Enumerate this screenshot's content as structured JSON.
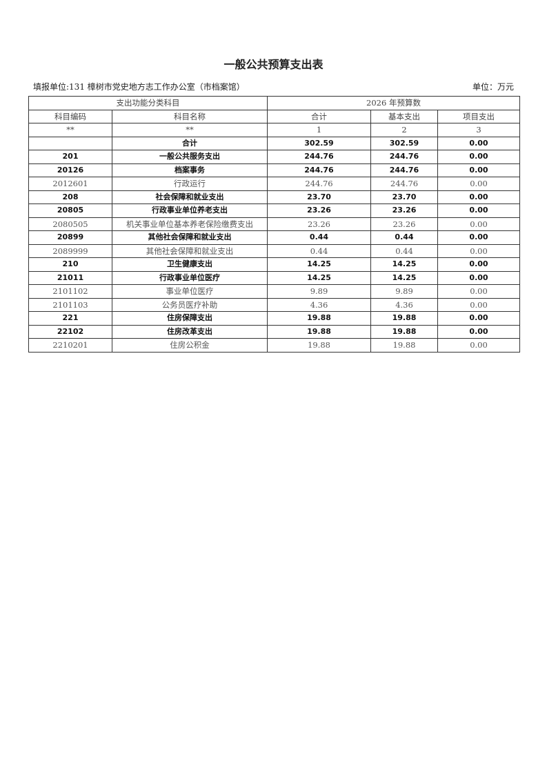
{
  "title": "一般公共预算支出表",
  "unit_left": "填报单位:131 樟树市党史地方志工作办公室（市档案馆）",
  "unit_right": "单位：万元",
  "header": {
    "group1": "支出功能分类科目",
    "group2": "2026 年预算数",
    "cols": [
      "科目编码",
      "科目名称",
      "合计",
      "基本支出",
      "项目支出"
    ],
    "index": [
      "**",
      "**",
      "1",
      "2",
      "3"
    ]
  },
  "rows": [
    {
      "code": "",
      "name": "合计",
      "total": "302.59",
      "basic": "302.59",
      "project": "0.00",
      "bold": true
    },
    {
      "code": "201",
      "name": "一般公共服务支出",
      "total": "244.76",
      "basic": "244.76",
      "project": "0.00",
      "bold": true
    },
    {
      "code": "20126",
      "name": "档案事务",
      "total": "244.76",
      "basic": "244.76",
      "project": "0.00",
      "bold": true
    },
    {
      "code": "2012601",
      "name": "行政运行",
      "total": "244.76",
      "basic": "244.76",
      "project": "0.00",
      "bold": false
    },
    {
      "code": "208",
      "name": "社会保障和就业支出",
      "total": "23.70",
      "basic": "23.70",
      "project": "0.00",
      "bold": true
    },
    {
      "code": "20805",
      "name": "行政事业单位养老支出",
      "total": "23.26",
      "basic": "23.26",
      "project": "0.00",
      "bold": true
    },
    {
      "code": "2080505",
      "name": "机关事业单位基本养老保险缴费支出",
      "total": "23.26",
      "basic": "23.26",
      "project": "0.00",
      "bold": false
    },
    {
      "code": "20899",
      "name": "其他社会保障和就业支出",
      "total": "0.44",
      "basic": "0.44",
      "project": "0.00",
      "bold": true
    },
    {
      "code": "2089999",
      "name": "其他社会保障和就业支出",
      "total": "0.44",
      "basic": "0.44",
      "project": "0.00",
      "bold": false
    },
    {
      "code": "210",
      "name": "卫生健康支出",
      "total": "14.25",
      "basic": "14.25",
      "project": "0.00",
      "bold": true
    },
    {
      "code": "21011",
      "name": "行政事业单位医疗",
      "total": "14.25",
      "basic": "14.25",
      "project": "0.00",
      "bold": true
    },
    {
      "code": "2101102",
      "name": "事业单位医疗",
      "total": "9.89",
      "basic": "9.89",
      "project": "0.00",
      "bold": false
    },
    {
      "code": "2101103",
      "name": "公务员医疗补助",
      "total": "4.36",
      "basic": "4.36",
      "project": "0.00",
      "bold": false
    },
    {
      "code": "221",
      "name": "住房保障支出",
      "total": "19.88",
      "basic": "19.88",
      "project": "0.00",
      "bold": true
    },
    {
      "code": "22102",
      "name": "住房改革支出",
      "total": "19.88",
      "basic": "19.88",
      "project": "0.00",
      "bold": true
    },
    {
      "code": "2210201",
      "name": "住房公积金",
      "total": "19.88",
      "basic": "19.88",
      "project": "0.00",
      "bold": false
    }
  ]
}
